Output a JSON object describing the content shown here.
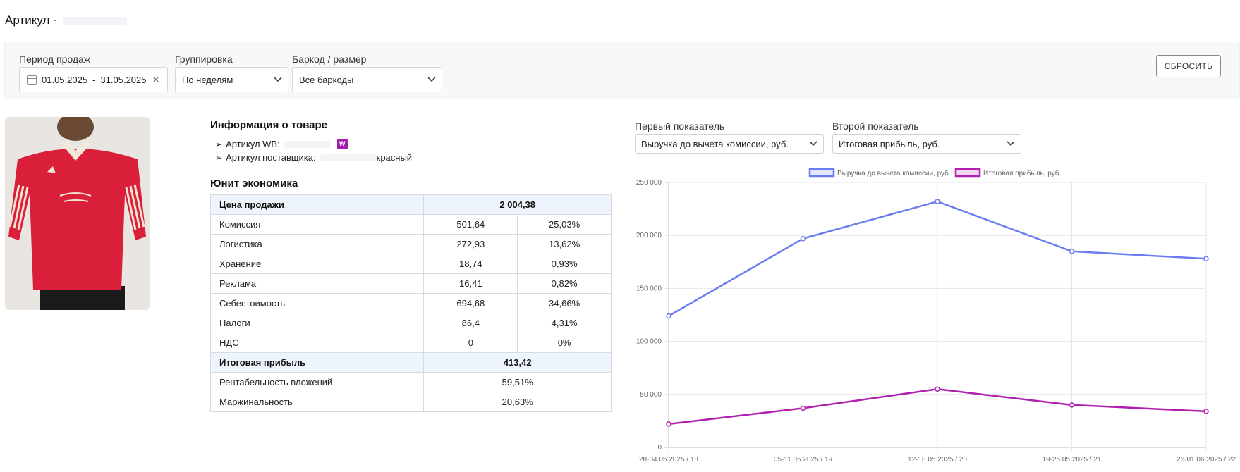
{
  "header": {
    "title": "Артикул",
    "title_sep": "-"
  },
  "filters": {
    "period": {
      "label": "Период продаж",
      "from": "01.05.2025",
      "sep": "-",
      "to": "31.05.2025"
    },
    "grouping": {
      "label": "Группировка",
      "value": "По неделям"
    },
    "barcode": {
      "label": "Баркод / размер",
      "value": "Все баркоды"
    },
    "reset_label": "СБРОСИТЬ"
  },
  "product": {
    "info_title": "Информация о товаре",
    "arrow": "➢",
    "wb_label": "Артикул WB:",
    "wb_badge": "W",
    "supplier_label": "Артикул поставщика:",
    "supplier_suffix": "красный"
  },
  "unit_economics": {
    "title": "Юнит экономика",
    "rows": [
      {
        "name": "Цена продажи",
        "value": "2 004,38",
        "highlight": true
      },
      {
        "name": "Комиссия",
        "value": "501,64",
        "percent": "25,03%"
      },
      {
        "name": "Логистика",
        "value": "272,93",
        "percent": "13,62%"
      },
      {
        "name": "Хранение",
        "value": "18,74",
        "percent": "0,93%"
      },
      {
        "name": "Реклама",
        "value": "16,41",
        "percent": "0,82%"
      },
      {
        "name": "Себестоимость",
        "value": "694,68",
        "percent": "34,66%"
      },
      {
        "name": "Налоги",
        "value": "86,4",
        "percent": "4,31%"
      },
      {
        "name": "НДС",
        "value": "0",
        "percent": "0%"
      },
      {
        "name": "Итоговая прибыль",
        "value": "413,42",
        "highlight": true
      },
      {
        "name": "Рентабельность вложений",
        "value": "59,51%"
      },
      {
        "name": "Маржинальность",
        "value": "20,63%"
      }
    ]
  },
  "metrics": {
    "first": {
      "label": "Первый показатель",
      "value": "Выручка до вычета комиссии, руб."
    },
    "second": {
      "label": "Второй показатель",
      "value": "Итоговая прибыль, руб."
    }
  },
  "chart_data": {
    "type": "line",
    "categories": [
      "28-04.05.2025 / 18",
      "05-11.05.2025 / 19",
      "12-18.05.2025 / 20",
      "19-25.05.2025 / 21",
      "26-01.06.2025 / 22"
    ],
    "series": [
      {
        "name": "Выручка до вычета комиссии, руб.",
        "color": "#6b7cf0",
        "values": [
          124000,
          197000,
          232000,
          185000,
          178000
        ]
      },
      {
        "name": "Итоговая прибыль, руб.",
        "color": "#b01fb0",
        "values": [
          22000,
          37000,
          55000,
          40000,
          34000
        ]
      }
    ],
    "ylim": [
      0,
      250000
    ],
    "yticks": [
      "0",
      "50 000",
      "100 000",
      "150 000",
      "200 000",
      "250 000"
    ],
    "grid": true,
    "legend": "top"
  }
}
